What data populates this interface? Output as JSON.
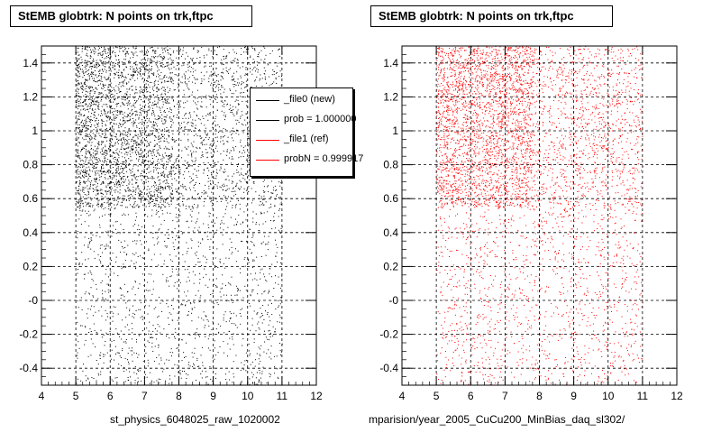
{
  "chart_data": [
    {
      "type": "scatter",
      "title": "StEMB globtrk: N points on trk,ftpc",
      "xlabel": "st_physics_6048025_raw_1020002",
      "ylabel": "",
      "xlim": [
        4,
        12
      ],
      "ylim": [
        -0.5,
        1.5
      ],
      "x_ticks": [
        "4",
        "5",
        "6",
        "7",
        "8",
        "9",
        "10",
        "11",
        "12"
      ],
      "y_ticks": [
        "-0.4",
        "-0.2",
        "-0",
        "0.2",
        "0.4",
        "0.6",
        "0.8",
        "1",
        "1.2",
        "1.4"
      ],
      "grid": true,
      "marker_color": "#000000",
      "point_density": {
        "x_range": [
          5,
          11
        ],
        "y_range": [
          -0.5,
          1.5
        ],
        "dense_band_y": [
          0.55,
          1.5
        ],
        "dense_band_x": [
          5,
          7.8
        ]
      },
      "legend": {
        "placement": "top-right",
        "entries": [
          {
            "label": "_file0 (new)",
            "color": "#000000"
          },
          {
            "label": "prob = 1.000000",
            "color": "#000000"
          },
          {
            "label": "_file1 (ref)",
            "color": "#ff0000"
          },
          {
            "label": "probN = 0.999917",
            "color": "#ff0000"
          }
        ]
      }
    },
    {
      "type": "scatter",
      "title": "StEMB globtrk: N points on trk,ftpc",
      "xlabel": "mparision/year_2005_CuCu200_MinBias_daq_sl302/",
      "ylabel": "",
      "xlim": [
        4,
        12
      ],
      "ylim": [
        -0.5,
        1.5
      ],
      "x_ticks": [
        "4",
        "5",
        "6",
        "7",
        "8",
        "9",
        "10",
        "11",
        "12"
      ],
      "y_ticks": [
        "-0.4",
        "-0.2",
        "-0",
        "0.2",
        "0.4",
        "0.6",
        "0.8",
        "1",
        "1.2",
        "1.4"
      ],
      "grid": true,
      "marker_color": "#ff0000",
      "point_density": {
        "x_range": [
          5,
          11
        ],
        "y_range": [
          -0.5,
          1.5
        ],
        "dense_band_y": [
          0.55,
          1.5
        ],
        "dense_band_x": [
          5,
          7.8
        ]
      }
    }
  ]
}
